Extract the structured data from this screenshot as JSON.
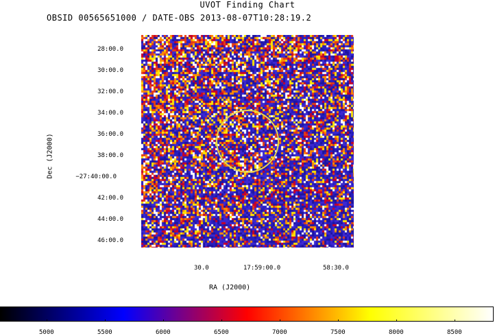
{
  "header": {
    "title": "UVOT Finding Chart",
    "subtitle": "OBSID 00565651000 / DATE-OBS 2013-08-07T10:28:19.2"
  },
  "axes": {
    "ylabel": "Dec (J2000)",
    "xlabel": "RA (J2000)",
    "dec_ticks": [
      "28:00.0",
      "30:00.0",
      "32:00.0",
      "34:00.0",
      "36:00.0",
      "38:00.0",
      "−27:40:00.0",
      "42:00.0",
      "44:00.0",
      "46:00.0"
    ],
    "ra_ticks": [
      "30.0",
      "17:59:00.0",
      "58:30.0"
    ]
  },
  "colorbar": {
    "ticks": [
      "5000",
      "5500",
      "6000",
      "6500",
      "7000",
      "7500",
      "8000",
      "8500"
    ],
    "colors": [
      "#000000",
      "#0000ff",
      "#ff0000",
      "#ffff00",
      "#ffffff"
    ]
  },
  "overlay": {
    "circle_color": "#e8d84a"
  }
}
